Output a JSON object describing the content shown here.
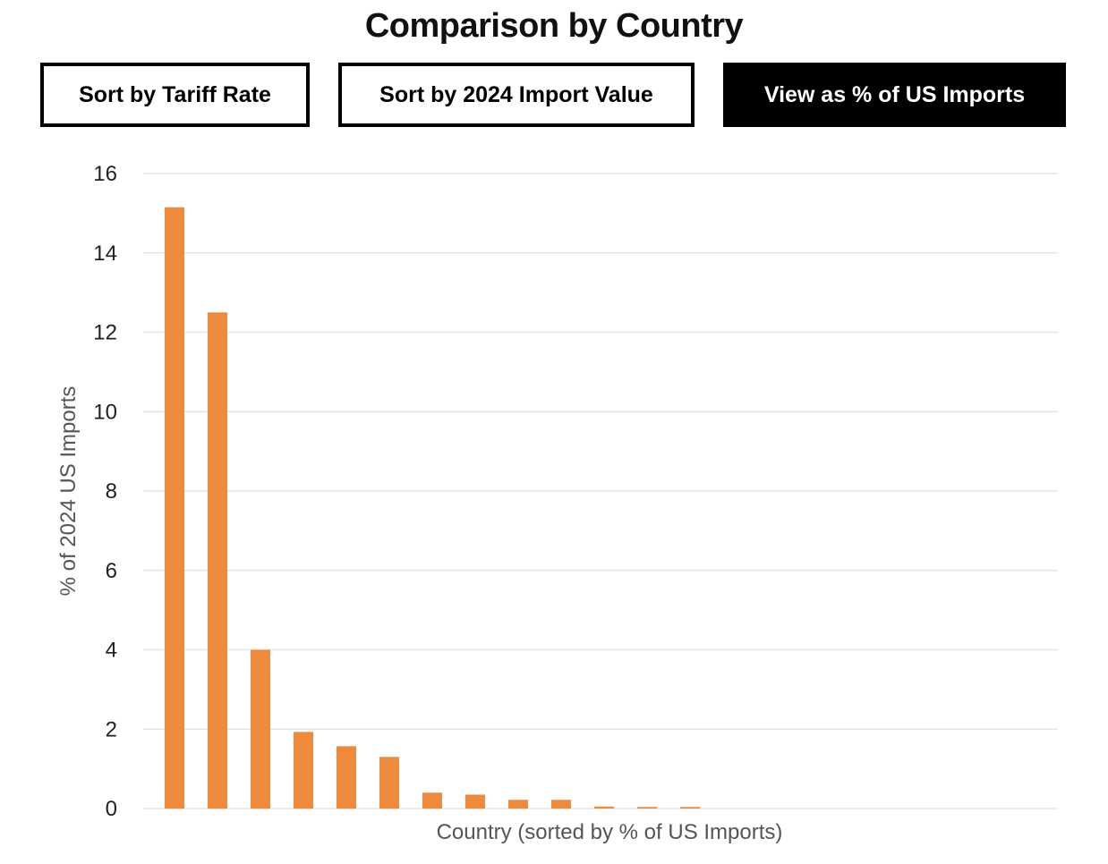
{
  "page": {
    "title": "Comparison by Country"
  },
  "buttons": [
    {
      "id": "sort_tariff",
      "label": "Sort by Tariff Rate",
      "active": false
    },
    {
      "id": "sort_import_value",
      "label": "Sort by 2024 Import Value",
      "active": false
    },
    {
      "id": "view_percent",
      "label": "View as % of US Imports",
      "active": true
    }
  ],
  "colors": {
    "bar": "#EF8A3A",
    "grid": "#E5E5E5",
    "axis_text": "#222222",
    "axis_label": "#555555",
    "button_active_bg": "#000000",
    "button_active_text": "#FFFFFF"
  },
  "chart_data": {
    "type": "bar",
    "title": "",
    "xlabel": "Country (sorted by % of US Imports)",
    "ylabel": "% of 2024 US Imports",
    "ylim": [
      0,
      16
    ],
    "yticks": [
      0,
      2,
      4,
      6,
      8,
      10,
      12,
      14,
      16
    ],
    "grid": true,
    "categories": [
      "",
      "",
      "",
      "",
      "",
      "",
      "",
      "",
      "",
      "",
      "",
      "",
      "",
      "",
      "",
      "",
      "",
      "",
      "",
      "",
      ""
    ],
    "values": [
      15.15,
      12.5,
      4.0,
      1.93,
      1.57,
      1.3,
      0.4,
      0.35,
      0.22,
      0.22,
      0.05,
      0.04,
      0.04,
      0,
      0,
      0,
      0,
      0,
      0,
      0,
      0
    ]
  }
}
